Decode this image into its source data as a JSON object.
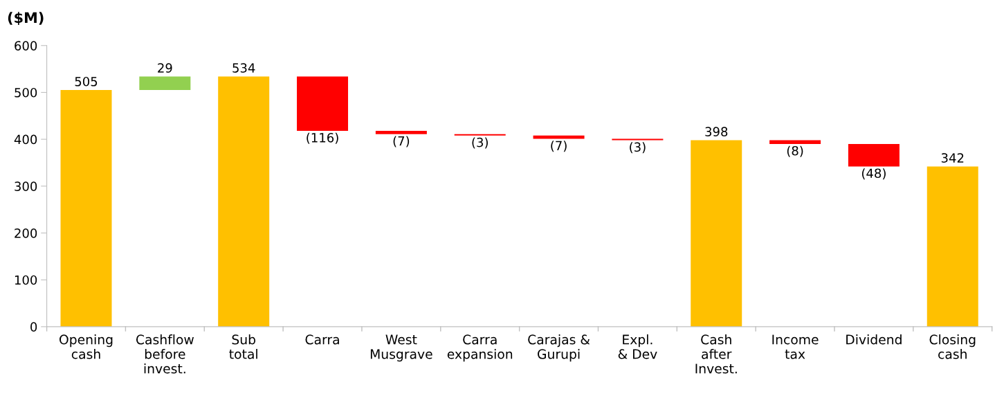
{
  "chart_data": {
    "type": "bar",
    "ylabel": "($M)",
    "categories": [
      "Opening\ncash",
      "Cashflow\nbefore\ninvest.",
      "Sub\ntotal",
      "Carra",
      "West\nMusgrave",
      "Carra\nexpansion",
      "Carajas &\nGurupi",
      "Expl.\n& Dev",
      "Cash\nafter\nInvest.",
      "Income\ntax",
      "Dividend",
      "Closing\ncash"
    ],
    "values": [
      505,
      29,
      534,
      -116,
      -7,
      -3,
      -7,
      -3,
      398,
      -8,
      -48,
      342
    ],
    "base": [
      0,
      505,
      0,
      534,
      418,
      411,
      408,
      401,
      0,
      398,
      390,
      0
    ],
    "colors": [
      "#ffc000",
      "#92d050",
      "#ffc000",
      "#ff0000",
      "#ff0000",
      "#ff0000",
      "#ff0000",
      "#ff0000",
      "#ffc000",
      "#ff0000",
      "#ff0000",
      "#ffc000"
    ],
    "value_labels": [
      "505",
      "29",
      "534",
      "(116)",
      "(7)",
      "(3)",
      "(7)",
      "(3)",
      "398",
      "(8)",
      "(48)",
      "342"
    ],
    "ylim": [
      0,
      600
    ],
    "yticks": [
      0,
      100,
      200,
      300,
      400,
      500,
      600
    ],
    "grid": false,
    "legend": false
  }
}
